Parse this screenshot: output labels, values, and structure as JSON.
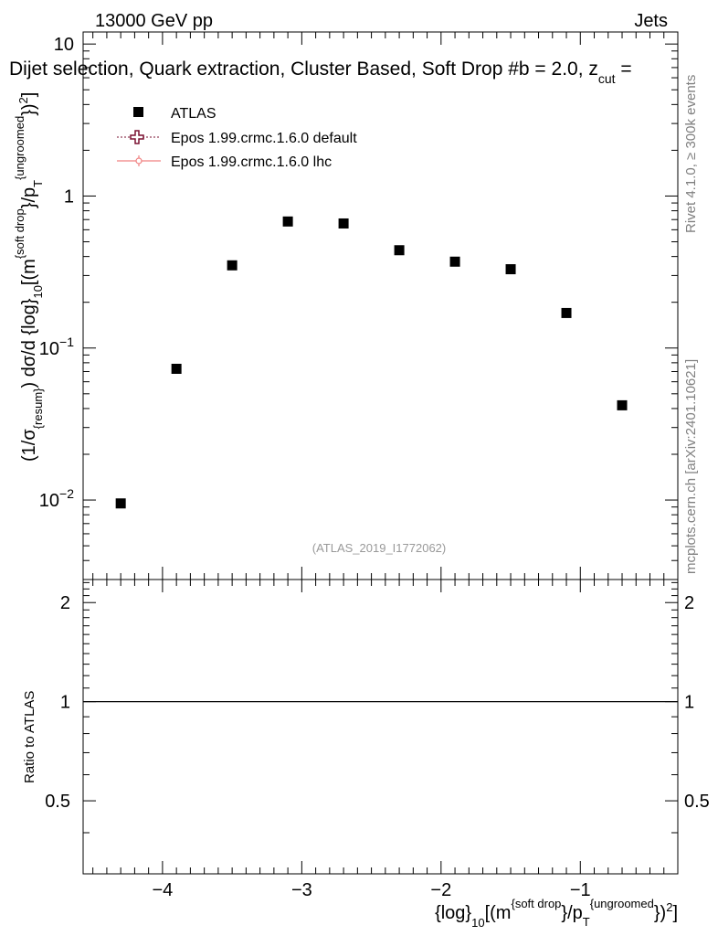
{
  "header": {
    "energy_label": "13000 GeV pp",
    "process_label": "Jets",
    "plot_title": "Dijet selection, Quark extraction, Cluster Based, Soft Drop #b = 2.0, z",
    "title_sub": "cut",
    "title_tail": " ="
  },
  "side_labels": {
    "rivet": "Rivet 4.1.0, ≥ 300k events",
    "mcplots": "mcplots.cern.ch [arXiv:2401.10621]"
  },
  "analysis_id": "(ATLAS_2019_I1772062)",
  "legend": [
    {
      "name": "ATLAS",
      "marker": "square",
      "color": "#000000"
    },
    {
      "name": "Epos 1.99.crmc.1.6.0 default",
      "marker": "cross",
      "color": "#7a1030"
    },
    {
      "name": "Epos 1.99.crmc.1.6.0 lhc",
      "marker": "circle-line",
      "color": "#f08080"
    }
  ],
  "axes": {
    "y_main": {
      "paren_l": "(1/σ",
      "sigma_sub": "{resum}",
      "paren_r": ") dσ/d {log}",
      "log_sub": "10",
      "bracket_m": "[(m",
      "m_sup": "{soft drop",
      "slash_p": "}/p",
      "p_sub": "T",
      "p_sup": "{ungroomed",
      "close": "})",
      "sq": "2",
      "end": "]"
    },
    "y_main_ticks": [
      {
        "base": "10",
        "exp": "",
        "value": 10
      },
      {
        "base": "1",
        "exp": "",
        "value": 1
      },
      {
        "base": "10",
        "exp": "−1",
        "value": 0.1
      },
      {
        "base": "10",
        "exp": "−2",
        "value": 0.01
      }
    ],
    "y_ratio_label": "Ratio to ATLAS",
    "y_ratio_ticks": [
      "2",
      "1",
      "0.5"
    ],
    "x_ticks": [
      "−4",
      "−3",
      "−2",
      "−1"
    ],
    "x_label": {
      "log": "{log}",
      "log_sub": "10",
      "bracket_m": "[(m",
      "m_sup": "{soft drop",
      "slash_p": "}/p",
      "p_sub": "T",
      "p_sup": "{ungroomed",
      "close": "})",
      "sq": "2",
      "end": "]"
    }
  },
  "chart_data": {
    "type": "scatter",
    "title": "Dijet selection, Quark extraction, Cluster Based, Soft Drop #b = 2.0, z_cut =",
    "xlabel": "{log}_10[(m^{soft drop}/p_T^{ungroomed})^2]",
    "ylabel": "(1/σ_{resum}) dσ/d {log}_10[(m^{soft drop}/p_T^{ungroomed})^2]",
    "xlim": [
      -4.57,
      -0.3
    ],
    "ylim": [
      0.003,
      12
    ],
    "yscale": "log",
    "ratio_ylim": [
      0.3,
      2.35
    ],
    "series": [
      {
        "name": "ATLAS",
        "x": [
          -4.3,
          -3.9,
          -3.5,
          -3.1,
          -2.7,
          -2.3,
          -1.9,
          -1.5,
          -1.1,
          -0.7
        ],
        "values": [
          0.0095,
          0.073,
          0.35,
          0.68,
          0.66,
          0.44,
          0.37,
          0.33,
          0.17,
          0.042
        ]
      }
    ],
    "ratio_series": [
      {
        "name": "ATLAS",
        "reference_line": 1
      }
    ]
  }
}
